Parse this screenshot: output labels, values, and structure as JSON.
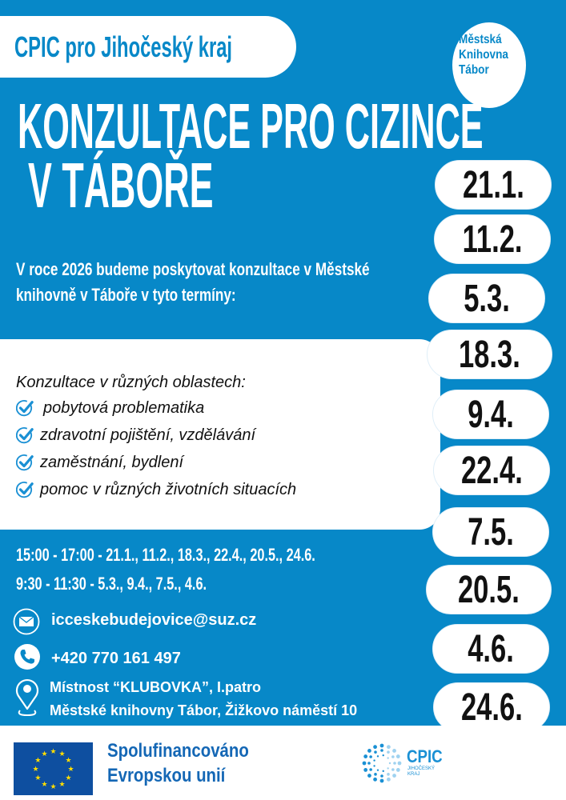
{
  "colors": {
    "brand_blue": "#0788c8",
    "eu_blue": "#0e4fa0",
    "eu_star": "#ffdd00"
  },
  "header": {
    "organization": "CPIC pro Jihočeský kraj",
    "library_logo": [
      "Městská",
      "Knihovna",
      "Tábor"
    ]
  },
  "title": {
    "line1": "KONZULTACE PRO CIZINCE",
    "line2": "V TÁBOŘE"
  },
  "intro": {
    "line1": "V roce 2026 budeme poskytovat konzultace v Městské",
    "line2": "knihovně v Táboře v tyto termíny:"
  },
  "areas": {
    "heading": "Konzultace v různých oblastech:",
    "items": [
      "pobytová problematika",
      "zdravotní pojištění, vzdělávání",
      "zaměstnání, bydlení",
      "pomoc v různých životních situacích"
    ],
    "icon": "check-circle-icon"
  },
  "dates": [
    "21.1.",
    "11.2.",
    "5.3.",
    "18.3.",
    "9.4.",
    "22.4.",
    "7.5.",
    "20.5.",
    "4.6.",
    "24.6."
  ],
  "schedule": [
    "15:00 - 17:00 - 21.1., 11.2., 18.3., 22.4., 20.5., 24.6.",
    "9:30 - 11:30 - 5.3., 9.4., 7.5., 4.6."
  ],
  "contact": {
    "email": "icceskebudejovice@suz.cz",
    "phone": "+420 770 161 497",
    "location_line1": "Místnost “KLUBOVKA”, I.patro",
    "location_line2": "Městské knihovny Tábor, Žižkovo náměstí 10"
  },
  "footer": {
    "eu_line1": "Spolufinancováno",
    "eu_line2": "Evropskou unií",
    "cpic_logo": "CPIC",
    "cpic_sub1": "JIHOČESKÝ",
    "cpic_sub2": "KRAJ"
  }
}
